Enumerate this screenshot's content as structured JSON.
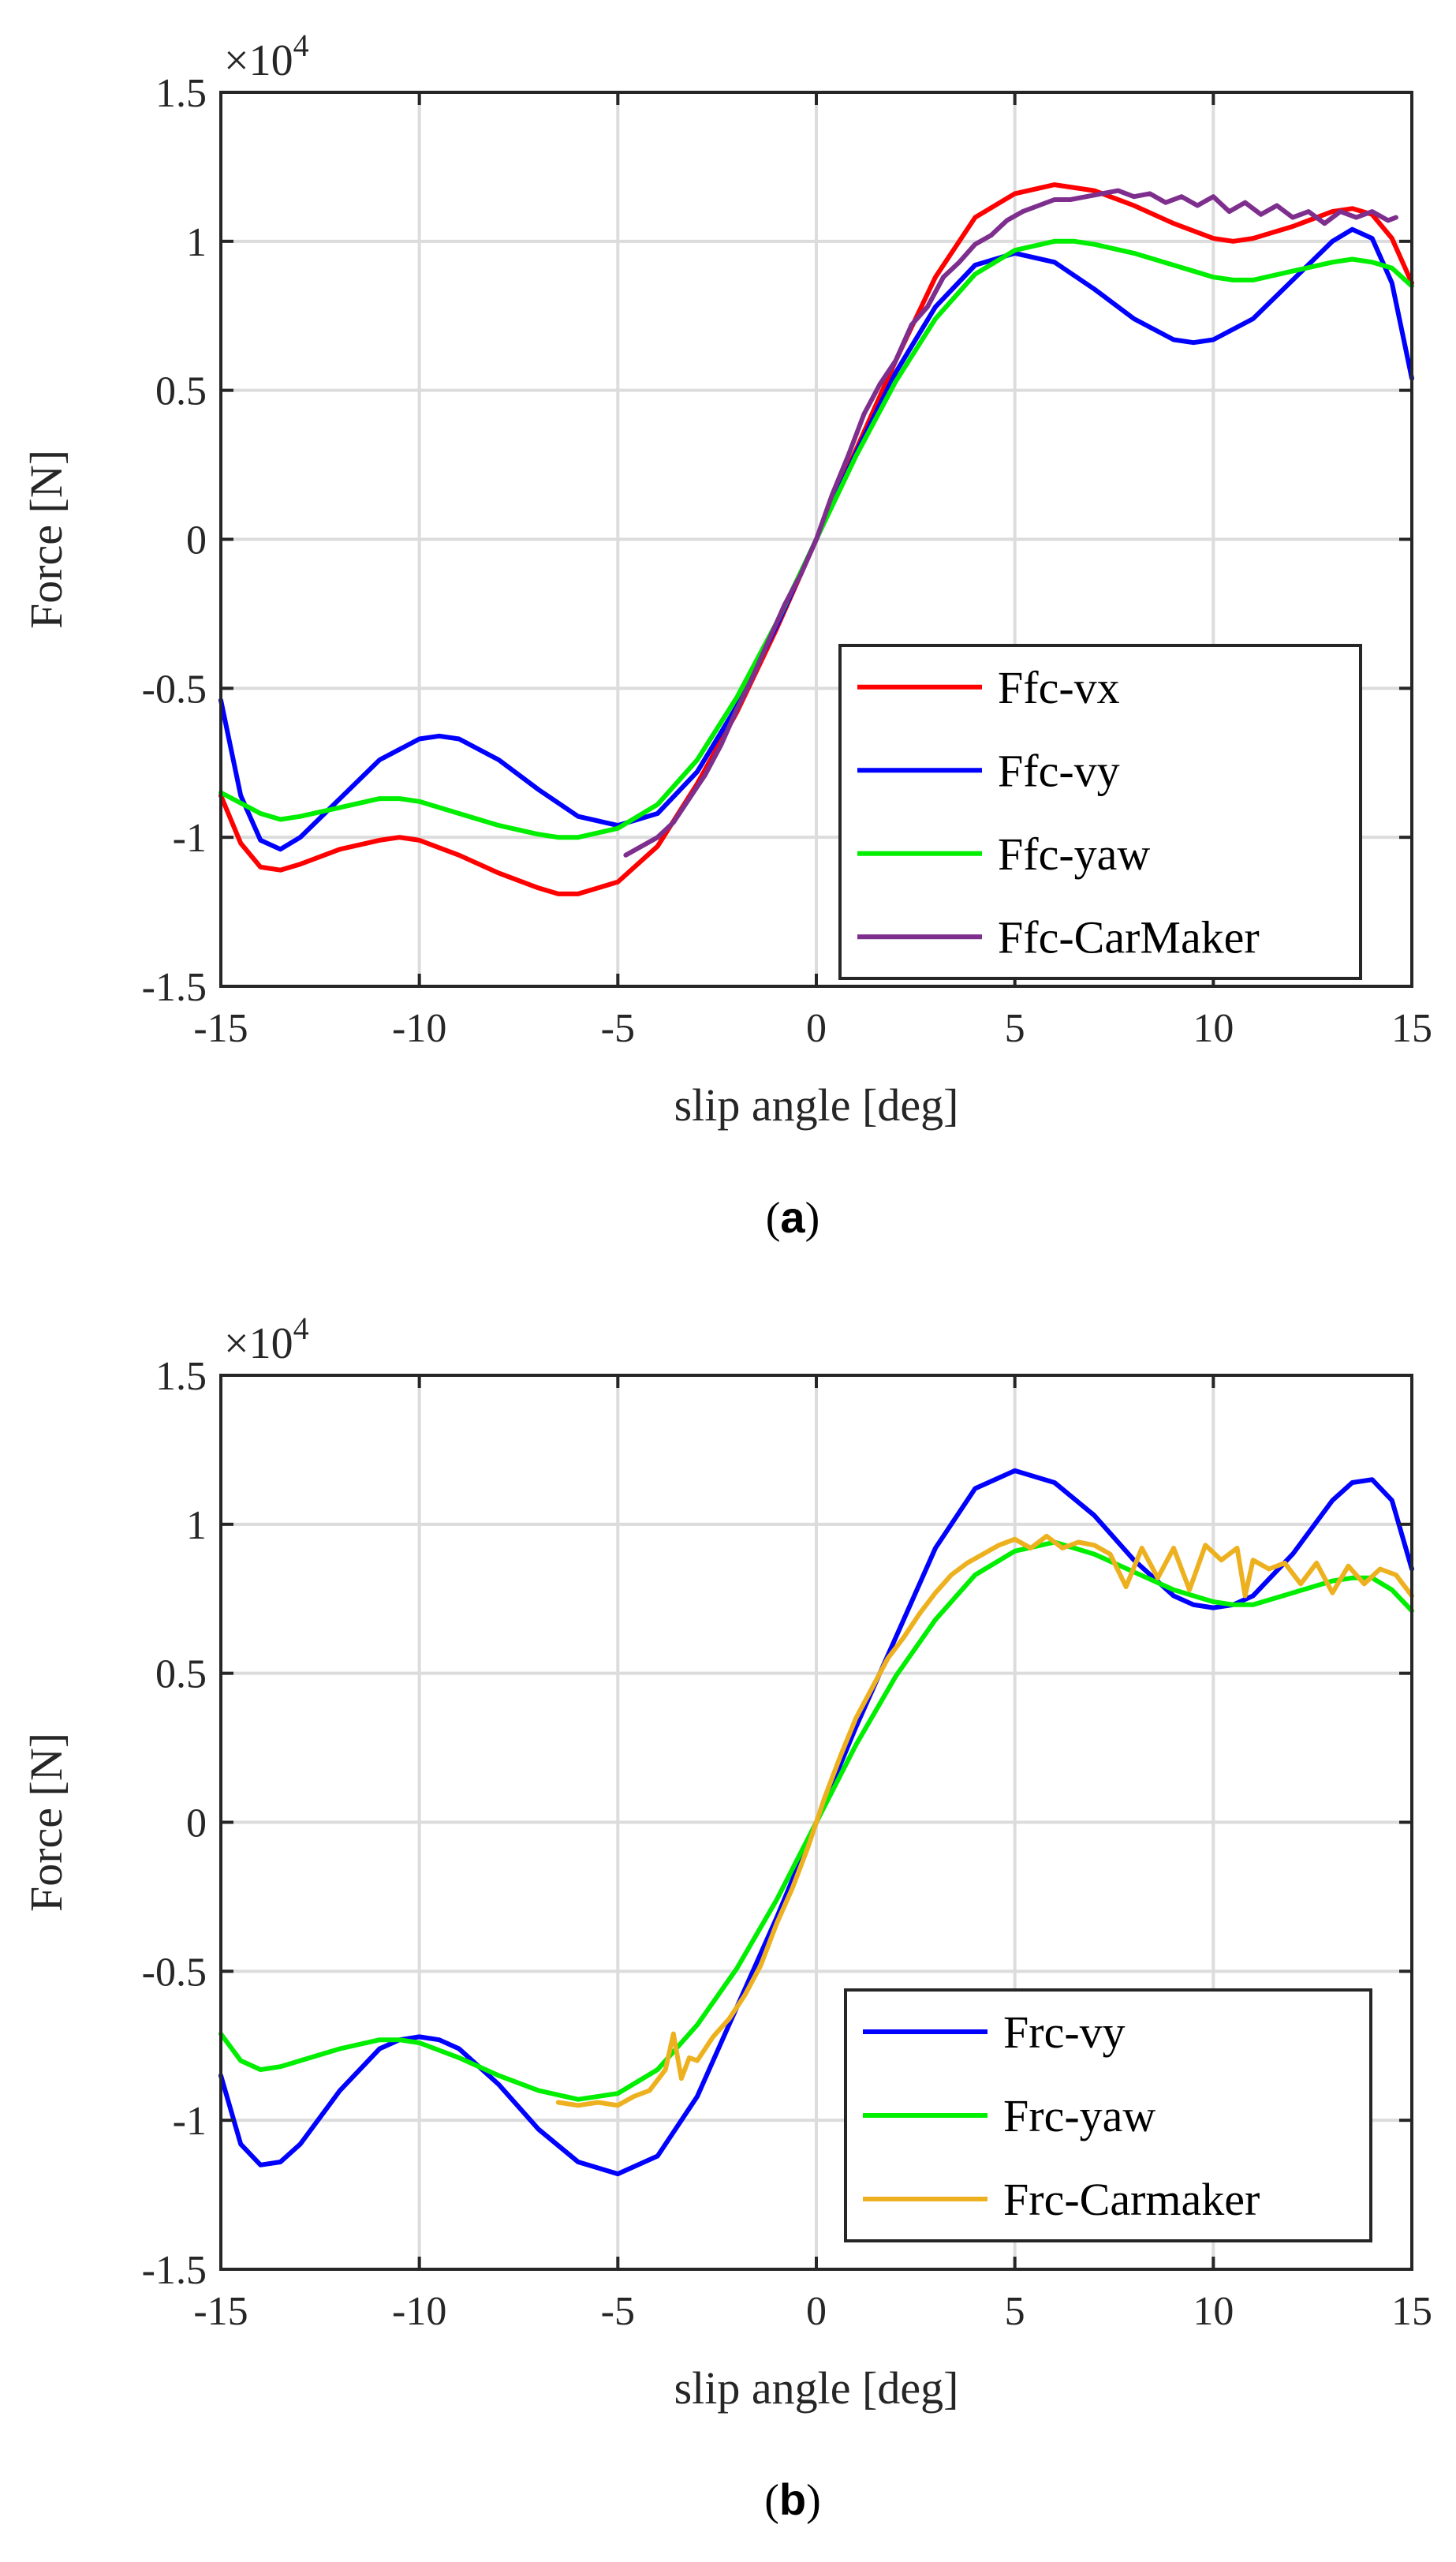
{
  "chart_data": [
    {
      "type": "line",
      "panel": "a",
      "caption_open": "(",
      "caption_letter": "a",
      "caption_close": ")",
      "title": "",
      "xlabel": "slip angle [deg]",
      "ylabel": "Force [N]",
      "y_multiplier": "×10",
      "y_multiplier_exp": "4",
      "xlim": [
        -15,
        15
      ],
      "ylim": [
        -1.5,
        1.5
      ],
      "xticks": [
        -15,
        -10,
        -5,
        0,
        5,
        10,
        15
      ],
      "yticks": [
        -1.5,
        -1,
        -0.5,
        0,
        0.5,
        1,
        1.5
      ],
      "xtick_labels": [
        "-15",
        "-10",
        "-5",
        "0",
        "5",
        "10",
        "15"
      ],
      "ytick_labels": [
        "-1.5",
        "-1",
        "-0.5",
        "0",
        "0.5",
        "1",
        "1.5"
      ],
      "grid": true,
      "legend_position": "bottom-right",
      "series": [
        {
          "name": "Ffc-vx",
          "color": "#ff0000",
          "x": [
            -15,
            -14.5,
            -14,
            -13.5,
            -13,
            -12,
            -11,
            -10.5,
            -10,
            -9,
            -8,
            -7,
            -6.5,
            -6,
            -5,
            -4,
            -3,
            -2,
            -1,
            0,
            1,
            2,
            3,
            4,
            5,
            6,
            7,
            8,
            9,
            10,
            10.5,
            11,
            12,
            13,
            13.5,
            14,
            14.5,
            15
          ],
          "y": [
            -0.86,
            -1.02,
            -1.1,
            -1.11,
            -1.09,
            -1.04,
            -1.01,
            -1.0,
            -1.01,
            -1.06,
            -1.12,
            -1.17,
            -1.19,
            -1.19,
            -1.15,
            -1.03,
            -0.82,
            -0.58,
            -0.3,
            0,
            0.3,
            0.6,
            0.88,
            1.08,
            1.16,
            1.19,
            1.17,
            1.12,
            1.06,
            1.01,
            1.0,
            1.01,
            1.05,
            1.1,
            1.11,
            1.09,
            1.01,
            0.86
          ]
        },
        {
          "name": "Ffc-vy",
          "color": "#0000ff",
          "x": [
            -15,
            -14.5,
            -14,
            -13.5,
            -13,
            -12,
            -11,
            -10,
            -9.5,
            -9,
            -8,
            -7,
            -6,
            -5,
            -4,
            -3,
            -2,
            -1,
            0,
            1,
            2,
            3,
            4,
            5,
            6,
            7,
            8,
            9,
            9.5,
            10,
            11,
            12,
            13,
            13.5,
            14,
            14.5,
            15
          ],
          "y": [
            -0.54,
            -0.86,
            -1.01,
            -1.04,
            -1.0,
            -0.87,
            -0.74,
            -0.67,
            -0.66,
            -0.67,
            -0.74,
            -0.84,
            -0.93,
            -0.96,
            -0.92,
            -0.78,
            -0.56,
            -0.29,
            0,
            0.29,
            0.56,
            0.78,
            0.92,
            0.96,
            0.93,
            0.84,
            0.74,
            0.67,
            0.66,
            0.67,
            0.74,
            0.87,
            1.0,
            1.04,
            1.01,
            0.86,
            0.54
          ]
        },
        {
          "name": "Ffc-yaw",
          "color": "#00ee00",
          "x": [
            -15,
            -14,
            -13.5,
            -13,
            -12,
            -11,
            -10.5,
            -10,
            -9,
            -8,
            -7,
            -6.5,
            -6,
            -5,
            -4,
            -3,
            -2,
            -1,
            0,
            1,
            2,
            3,
            4,
            5,
            6,
            6.5,
            7,
            8,
            9,
            10,
            10.5,
            11,
            12,
            13,
            13.5,
            14,
            14.5,
            15
          ],
          "y": [
            -0.85,
            -0.92,
            -0.94,
            -0.93,
            -0.9,
            -0.87,
            -0.87,
            -0.88,
            -0.92,
            -0.96,
            -0.99,
            -1.0,
            -1.0,
            -0.97,
            -0.89,
            -0.74,
            -0.53,
            -0.28,
            0,
            0.28,
            0.53,
            0.74,
            0.89,
            0.97,
            1.0,
            1.0,
            0.99,
            0.96,
            0.92,
            0.88,
            0.87,
            0.87,
            0.9,
            0.93,
            0.94,
            0.93,
            0.91,
            0.85
          ]
        },
        {
          "name": "Ffc-CarMaker",
          "color": "#7e2f8e",
          "x": [
            -4.8,
            -4.4,
            -4,
            -3.6,
            -3.2,
            -2.8,
            -2.4,
            -2,
            -1.6,
            -1.2,
            -0.8,
            -0.4,
            0,
            0.4,
            0.8,
            1.2,
            1.6,
            2,
            2.4,
            2.8,
            3.2,
            3.6,
            4,
            4.4,
            4.8,
            5.2,
            5.6,
            6,
            6.4,
            6.8,
            7.2,
            7.6,
            8,
            8.4,
            8.8,
            9.2,
            9.6,
            10,
            10.4,
            10.8,
            11.2,
            11.6,
            12,
            12.4,
            12.8,
            13.2,
            13.6,
            14,
            14.4,
            14.6
          ],
          "y": [
            -1.06,
            -1.03,
            -1.0,
            -0.95,
            -0.87,
            -0.79,
            -0.69,
            -0.57,
            -0.46,
            -0.34,
            -0.22,
            -0.12,
            0,
            0.15,
            0.28,
            0.42,
            0.52,
            0.6,
            0.72,
            0.78,
            0.88,
            0.93,
            0.99,
            1.02,
            1.07,
            1.1,
            1.12,
            1.14,
            1.14,
            1.15,
            1.16,
            1.17,
            1.15,
            1.16,
            1.13,
            1.15,
            1.12,
            1.15,
            1.1,
            1.13,
            1.09,
            1.12,
            1.08,
            1.1,
            1.06,
            1.1,
            1.08,
            1.1,
            1.07,
            1.08
          ]
        }
      ],
      "legend": [
        "Ffc-vx",
        "Ffc-vy",
        "Ffc-yaw",
        "Ffc-CarMaker"
      ]
    },
    {
      "type": "line",
      "panel": "b",
      "caption_open": "(",
      "caption_letter": "b",
      "caption_close": ")",
      "title": "",
      "xlabel": "slip angle [deg]",
      "ylabel": "Force [N]",
      "y_multiplier": "×10",
      "y_multiplier_exp": "4",
      "xlim": [
        -15,
        15
      ],
      "ylim": [
        -1.5,
        1.5
      ],
      "xticks": [
        -15,
        -10,
        -5,
        0,
        5,
        10,
        15
      ],
      "yticks": [
        -1.5,
        -1,
        -0.5,
        0,
        0.5,
        1,
        1.5
      ],
      "xtick_labels": [
        "-15",
        "-10",
        "-5",
        "0",
        "5",
        "10",
        "15"
      ],
      "ytick_labels": [
        "-1.5",
        "-1",
        "-0.5",
        "0",
        "0.5",
        "1",
        "1.5"
      ],
      "grid": true,
      "legend_position": "bottom-right",
      "series": [
        {
          "name": "Frc-vy",
          "color": "#0000ff",
          "x": [
            -15,
            -14.5,
            -14,
            -13.5,
            -13,
            -12,
            -11,
            -10.5,
            -10,
            -9.5,
            -9,
            -8,
            -7,
            -6,
            -5,
            -4,
            -3,
            -2,
            -1,
            0,
            1,
            2,
            3,
            4,
            5,
            6,
            7,
            8,
            9,
            9.5,
            10,
            10.5,
            11,
            12,
            13,
            13.5,
            14,
            14.5,
            15
          ],
          "y": [
            -0.85,
            -1.08,
            -1.15,
            -1.14,
            -1.08,
            -0.9,
            -0.76,
            -0.73,
            -0.72,
            -0.73,
            -0.76,
            -0.88,
            -1.03,
            -1.14,
            -1.18,
            -1.12,
            -0.92,
            -0.62,
            -0.32,
            0,
            0.32,
            0.62,
            0.92,
            1.12,
            1.18,
            1.14,
            1.03,
            0.88,
            0.76,
            0.73,
            0.72,
            0.73,
            0.76,
            0.9,
            1.08,
            1.14,
            1.15,
            1.08,
            0.85
          ]
        },
        {
          "name": "Frc-yaw",
          "color": "#00ee00",
          "x": [
            -15,
            -14.5,
            -14,
            -13.5,
            -13,
            -12,
            -11,
            -10.5,
            -10,
            -9,
            -8,
            -7,
            -6,
            -5,
            -4,
            -3,
            -2,
            -1,
            0,
            1,
            2,
            3,
            4,
            5,
            6,
            7,
            8,
            9,
            10,
            10.5,
            11,
            12,
            13,
            13.5,
            14,
            14.5,
            15
          ],
          "y": [
            -0.71,
            -0.8,
            -0.83,
            -0.82,
            -0.8,
            -0.76,
            -0.73,
            -0.73,
            -0.74,
            -0.79,
            -0.85,
            -0.9,
            -0.93,
            -0.91,
            -0.83,
            -0.68,
            -0.49,
            -0.26,
            0,
            0.26,
            0.49,
            0.68,
            0.83,
            0.91,
            0.94,
            0.9,
            0.84,
            0.78,
            0.74,
            0.73,
            0.73,
            0.77,
            0.81,
            0.82,
            0.82,
            0.78,
            0.71
          ]
        },
        {
          "name": "Frc-Carmaker",
          "color": "#edb120",
          "x": [
            -6.5,
            -6,
            -5.5,
            -5,
            -4.6,
            -4.2,
            -3.8,
            -3.6,
            -3.4,
            -3.2,
            -3,
            -2.6,
            -2.2,
            -1.8,
            -1.4,
            -1,
            -0.6,
            -0.2,
            0.2,
            0.6,
            1,
            1.4,
            1.8,
            2.2,
            2.6,
            3,
            3.4,
            3.8,
            4.2,
            4.6,
            5,
            5.4,
            5.8,
            6.2,
            6.6,
            7,
            7.4,
            7.8,
            8.2,
            8.6,
            9,
            9.4,
            9.8,
            10.2,
            10.6,
            10.8,
            11,
            11.4,
            11.8,
            12.2,
            12.6,
            13,
            13.4,
            13.8,
            14.2,
            14.6,
            15
          ],
          "y": [
            -0.94,
            -0.95,
            -0.94,
            -0.95,
            -0.92,
            -0.9,
            -0.83,
            -0.71,
            -0.86,
            -0.79,
            -0.8,
            -0.72,
            -0.66,
            -0.58,
            -0.48,
            -0.34,
            -0.22,
            -0.08,
            0.08,
            0.22,
            0.35,
            0.45,
            0.55,
            0.62,
            0.7,
            0.77,
            0.83,
            0.87,
            0.9,
            0.93,
            0.95,
            0.92,
            0.96,
            0.92,
            0.94,
            0.93,
            0.9,
            0.79,
            0.92,
            0.82,
            0.92,
            0.78,
            0.93,
            0.88,
            0.92,
            0.76,
            0.88,
            0.85,
            0.87,
            0.8,
            0.87,
            0.77,
            0.86,
            0.8,
            0.85,
            0.83,
            0.76
          ]
        }
      ],
      "legend": [
        "Frc-vy",
        "Frc-yaw",
        "Frc-Carmaker"
      ]
    }
  ]
}
